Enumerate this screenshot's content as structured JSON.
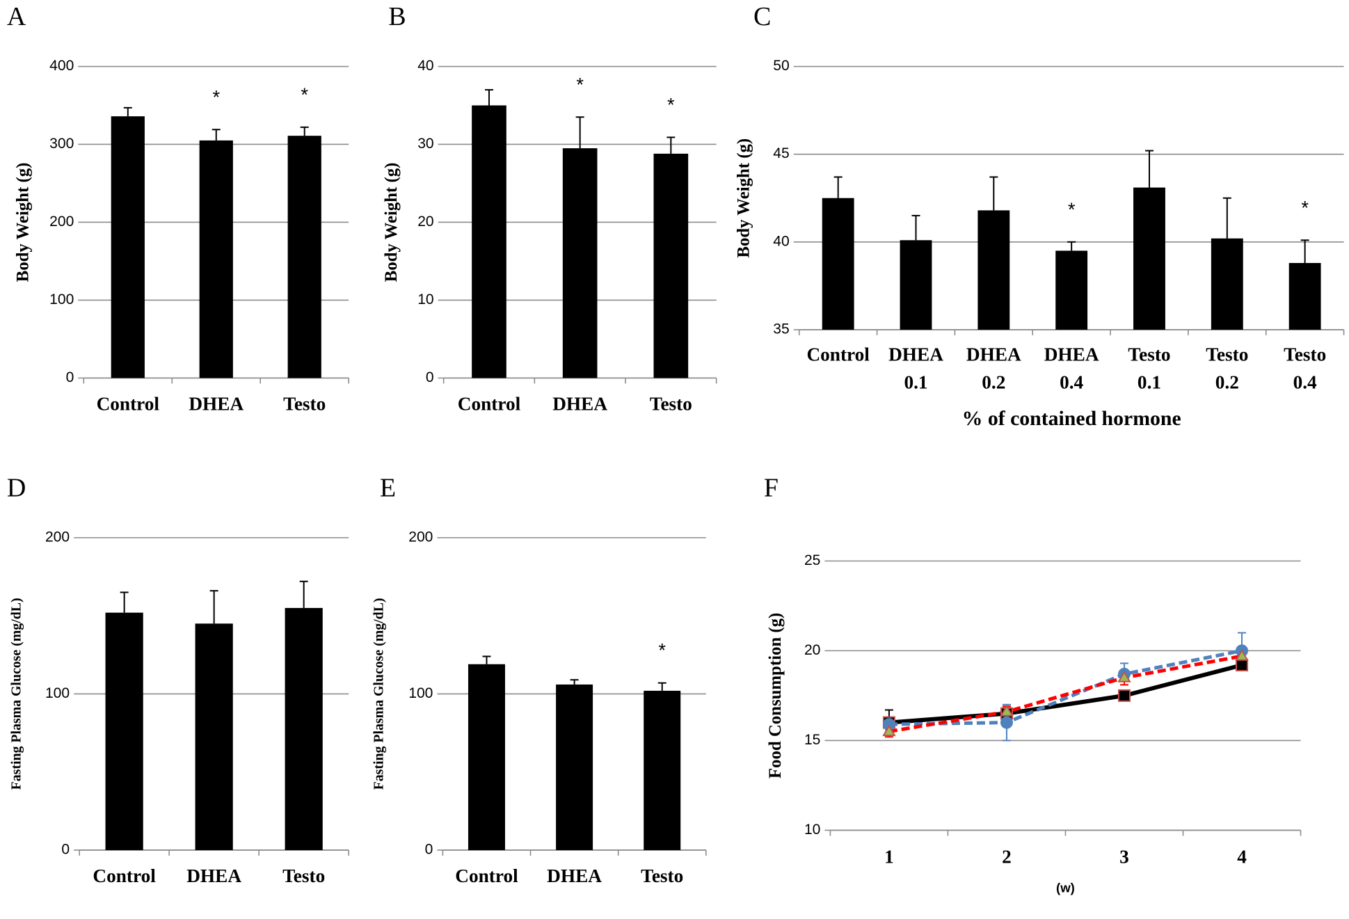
{
  "chart_data": [
    {
      "type": "bar",
      "panel": "A",
      "y_label": "Body Weight (g)",
      "categories": [
        [
          "Control"
        ],
        [
          "DHEA"
        ],
        [
          "Testo"
        ]
      ],
      "values": [
        336,
        305,
        311
      ],
      "errors": [
        11,
        14,
        11
      ],
      "significance": [
        null,
        "*",
        "*"
      ],
      "color": "#000000",
      "ylim": [
        0,
        400
      ],
      "yticks": [
        0,
        100,
        200,
        300,
        400
      ],
      "grid": true
    },
    {
      "type": "bar",
      "panel": "B",
      "y_label": "Body Weight (g)",
      "categories": [
        [
          "Control"
        ],
        [
          "DHEA"
        ],
        [
          "Testo"
        ]
      ],
      "values": [
        35,
        29.5,
        28.8
      ],
      "errors": [
        2,
        4,
        2.1
      ],
      "significance": [
        null,
        "*",
        "*"
      ],
      "color": "#000000",
      "ylim": [
        0,
        40
      ],
      "yticks": [
        0,
        10,
        20,
        30,
        40
      ],
      "grid": true
    },
    {
      "type": "bar",
      "panel": "C",
      "y_label": "Body Weight (g)",
      "x_label": "% of contained  hormone",
      "categories": [
        [
          "Control"
        ],
        [
          "DHEA",
          "0.1"
        ],
        [
          "DHEA",
          "0.2"
        ],
        [
          "DHEA",
          "0.4"
        ],
        [
          "Testo",
          "0.1"
        ],
        [
          "Testo",
          "0.2"
        ],
        [
          "Testo",
          "0.4"
        ]
      ],
      "values": [
        42.5,
        40.1,
        41.8,
        39.5,
        43.1,
        40.2,
        38.8
      ],
      "errors": [
        1.2,
        1.4,
        1.9,
        0.5,
        2.1,
        2.3,
        1.3
      ],
      "significance": [
        null,
        null,
        null,
        "*",
        null,
        null,
        "*"
      ],
      "color": "#000000",
      "ylim": [
        35,
        50
      ],
      "yticks": [
        35,
        40,
        45,
        50
      ],
      "grid": true
    },
    {
      "type": "bar",
      "panel": "D",
      "y_label": "Fasting Plasma Glucose (mg/dL)",
      "categories": [
        [
          "Control"
        ],
        [
          "DHEA"
        ],
        [
          "Testo"
        ]
      ],
      "values": [
        152,
        145,
        155
      ],
      "errors": [
        13,
        21,
        17
      ],
      "significance": [
        null,
        null,
        null
      ],
      "color": "#000000",
      "ylim": [
        0,
        200
      ],
      "yticks": [
        0,
        100,
        200
      ],
      "grid": true
    },
    {
      "type": "bar",
      "panel": "E",
      "y_label": "Fasting Plasma Glucose (mg/dL)",
      "categories": [
        [
          "Control"
        ],
        [
          "DHEA"
        ],
        [
          "Testo"
        ]
      ],
      "values": [
        119,
        106,
        102
      ],
      "errors": [
        5,
        3,
        5
      ],
      "significance": [
        null,
        null,
        "*"
      ],
      "color": "#000000",
      "ylim": [
        0,
        200
      ],
      "yticks": [
        0,
        100,
        200
      ],
      "grid": true
    },
    {
      "type": "line",
      "panel": "F",
      "y_label": "Food Consumption (g)",
      "x_label": "(w)",
      "categories": [
        [
          "1"
        ],
        [
          "2"
        ],
        [
          "3"
        ],
        [
          "4"
        ]
      ],
      "series": [
        {
          "color": "#000000",
          "dash": false,
          "marker": "square",
          "marker_fill": "#000000",
          "marker_edge": "#c0504d",
          "values": [
            16,
            16.5,
            17.5,
            19.2
          ],
          "errors": [
            0.7,
            0.4,
            0.3,
            0.3
          ]
        },
        {
          "color": "#4f81bd",
          "dash": true,
          "marker": "circle",
          "marker_fill": "#4f81bd",
          "marker_edge": "#4f81bd",
          "values": [
            15.9,
            16,
            18.7,
            20
          ],
          "errors": [
            0.3,
            1,
            0.6,
            1
          ]
        },
        {
          "color": "#ff0000",
          "dash": true,
          "marker": "triangle",
          "marker_fill": "#9bbb59",
          "marker_edge": "#c0504d",
          "values": [
            15.5,
            16.6,
            18.5,
            19.7
          ],
          "errors": [
            0.3,
            0.3,
            0.4,
            0.4
          ]
        }
      ],
      "ylim": [
        10,
        25
      ],
      "yticks": [
        10,
        15,
        20,
        25
      ],
      "grid": true
    }
  ]
}
